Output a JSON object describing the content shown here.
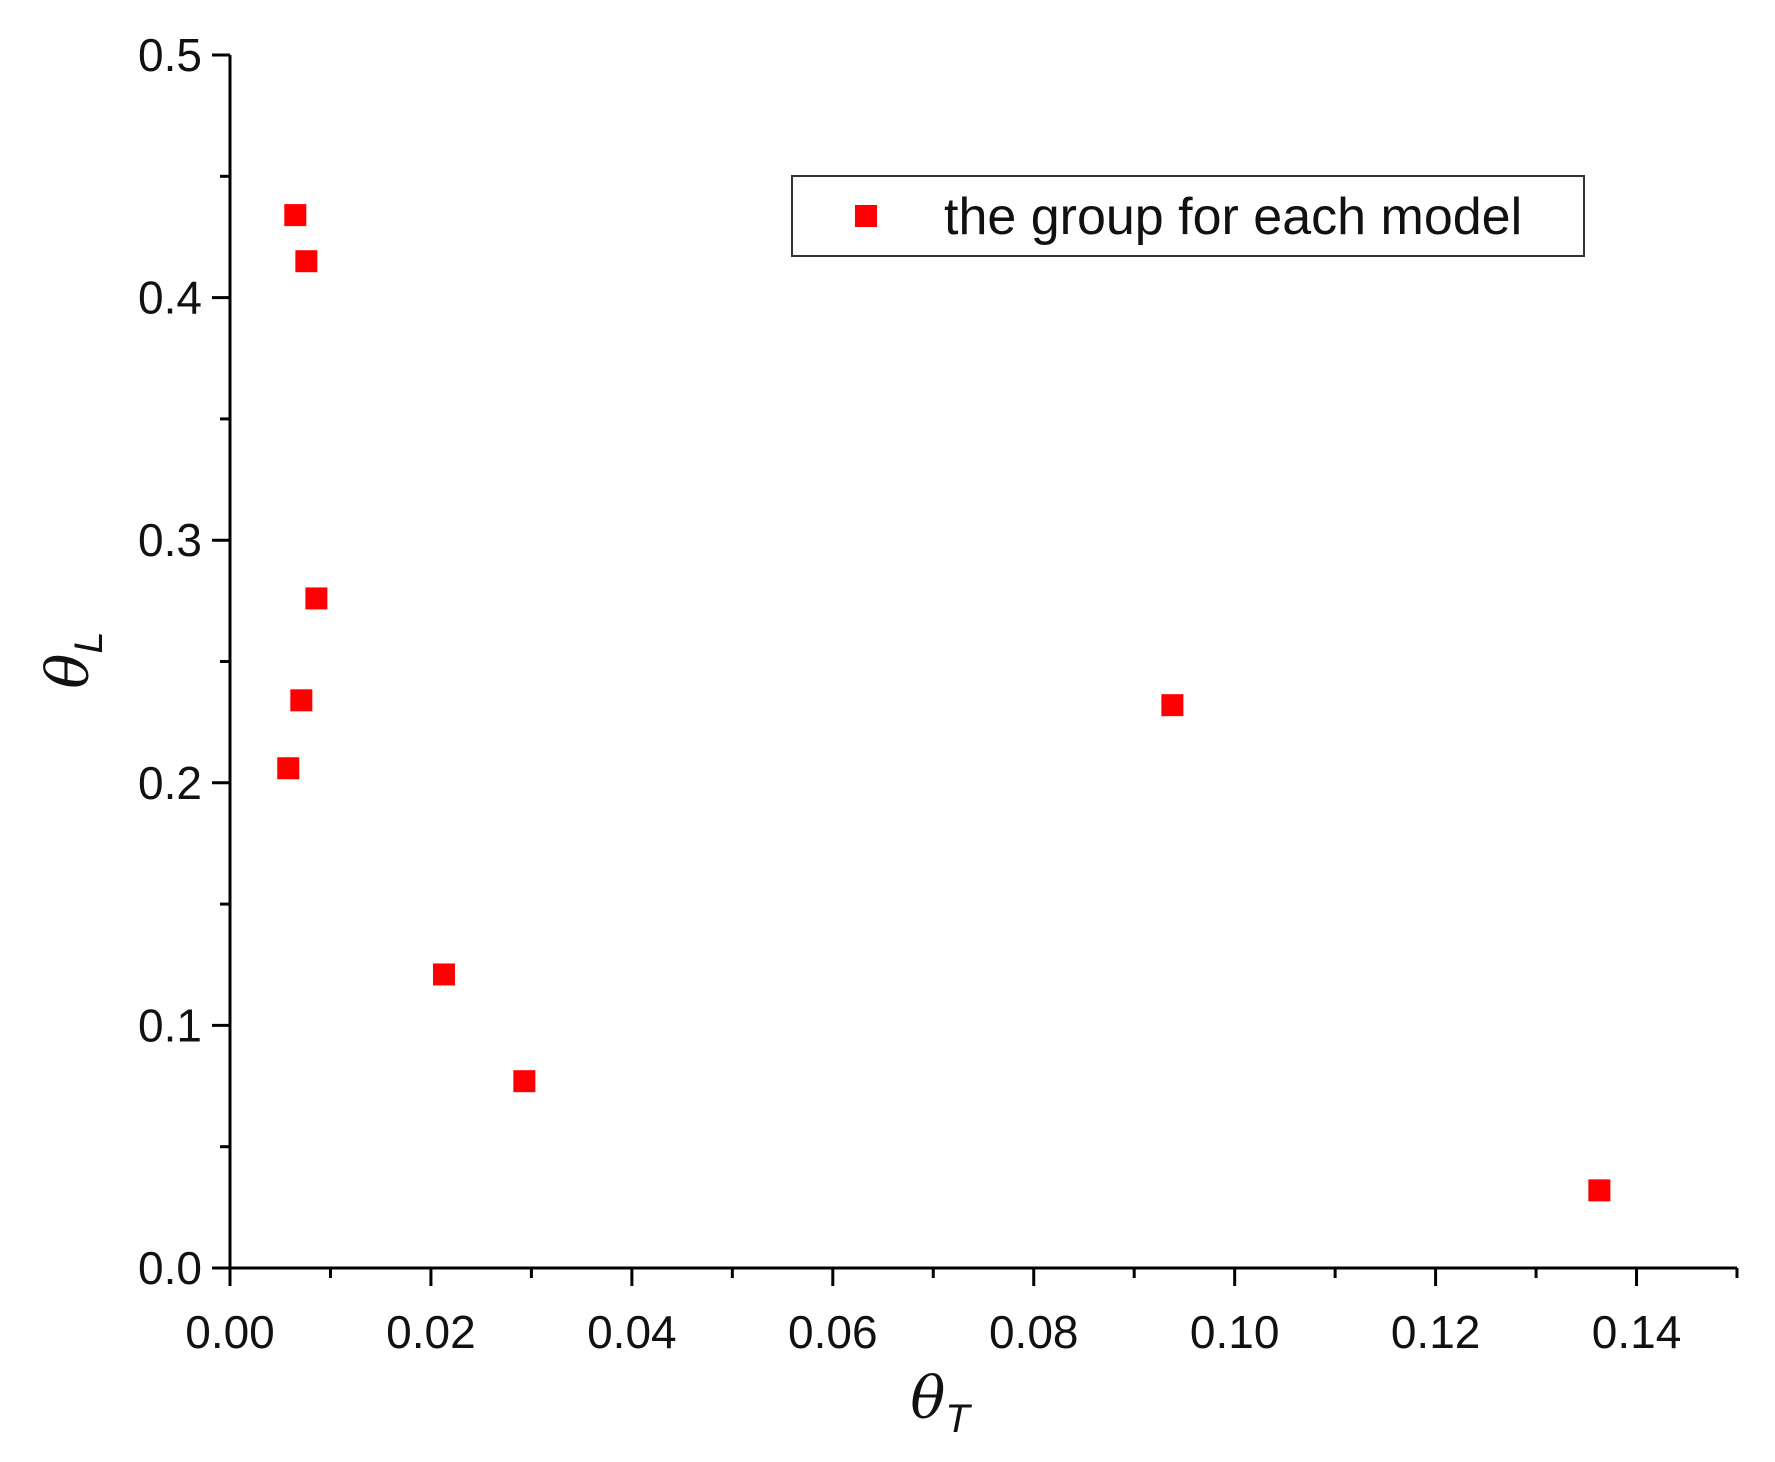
{
  "chart_data": {
    "type": "scatter",
    "title": "",
    "xlabel": {
      "symbol": "θ",
      "subscript": "T"
    },
    "ylabel": {
      "symbol": "θ",
      "subscript": "L"
    },
    "xlim": [
      0,
      0.15
    ],
    "ylim": [
      0,
      0.5
    ],
    "x_ticks": [
      "0.00",
      "0.02",
      "0.04",
      "0.06",
      "0.08",
      "0.10",
      "0.12",
      "0.14"
    ],
    "y_ticks": [
      "0.0",
      "0.1",
      "0.2",
      "0.3",
      "0.4",
      "0.5"
    ],
    "grid": false,
    "legend_position": "top-right",
    "marker": "square",
    "color": "#ff0000",
    "series": [
      {
        "name": "the group for each model",
        "points": [
          {
            "x": 0.0065,
            "y": 0.434
          },
          {
            "x": 0.0076,
            "y": 0.415
          },
          {
            "x": 0.0086,
            "y": 0.276
          },
          {
            "x": 0.0071,
            "y": 0.234
          },
          {
            "x": 0.0058,
            "y": 0.206
          },
          {
            "x": 0.0213,
            "y": 0.121
          },
          {
            "x": 0.0293,
            "y": 0.077
          },
          {
            "x": 0.0938,
            "y": 0.232
          },
          {
            "x": 0.1363,
            "y": 0.032
          }
        ]
      }
    ]
  }
}
